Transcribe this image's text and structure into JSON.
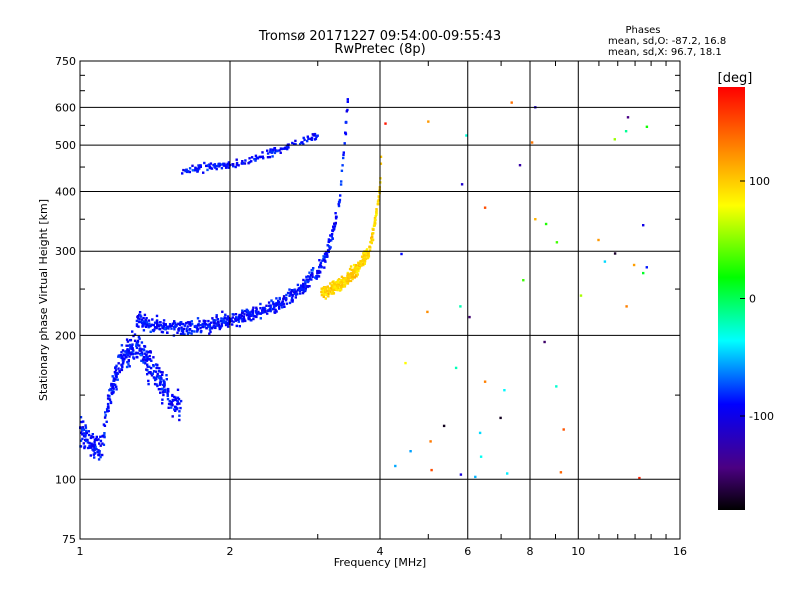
{
  "chart_data": {
    "type": "scatter",
    "title": "Tromsø 20171227 09:54:00-09:55:43",
    "subtitle": "RwPretec (8p)",
    "xlabel": "Frequency [MHz]",
    "ylabel": "Stationary phase Virtual Height [km]",
    "x_scale": "log",
    "y_scale": "log",
    "xlim": [
      1,
      16
    ],
    "ylim": [
      75,
      750
    ],
    "x_ticks": [
      1,
      2,
      4,
      6,
      8,
      10,
      16
    ],
    "x_tick_labels": [
      "1",
      "2",
      "4",
      "6",
      "8",
      "10",
      "16"
    ],
    "x_gridlines": [
      2,
      4,
      6,
      8,
      10
    ],
    "y_ticks": [
      75,
      100,
      200,
      300,
      400,
      500,
      600,
      750
    ],
    "y_tick_labels": [
      "75",
      "100",
      "200",
      "300",
      "400",
      "500",
      "600",
      "750"
    ],
    "y_gridlines": [
      100,
      200,
      300,
      400,
      500,
      600
    ],
    "grid": true,
    "legend_text": {
      "heading": "Phases",
      "line1": "mean, sd,O: -87.2, 16.8",
      "line2": "mean, sd,X:  96.7, 18.1"
    },
    "colorbar": {
      "label": "[deg]",
      "range": [
        -180,
        180
      ],
      "ticks": [
        100,
        0,
        -100
      ],
      "tick_labels": [
        "100",
        "0",
        "-100"
      ],
      "colormap": "rainbow (black-purple-blue-cyan-green-yellow-red)"
    },
    "o_trace": {
      "phase_mean": -87.2,
      "phase_sd": 16.8,
      "lower_layer_x": [
        1.0,
        1.05,
        1.1,
        1.15,
        1.2,
        1.3,
        1.4,
        1.5,
        1.6
      ],
      "lower_layer_y": [
        125,
        118,
        115,
        150,
        175,
        190,
        170,
        150,
        140
      ],
      "trace_x": [
        1.3,
        1.4,
        1.5,
        1.6,
        1.8,
        2.0,
        2.2,
        2.4,
        2.6,
        2.8,
        3.0,
        3.1,
        3.2,
        3.3,
        3.35,
        3.4,
        3.45
      ],
      "trace_y": [
        215,
        210,
        208,
        208,
        210,
        215,
        220,
        228,
        238,
        252,
        272,
        290,
        320,
        370,
        430,
        510,
        620
      ],
      "upper_layer_x": [
        1.6,
        1.8,
        2.0,
        2.2,
        2.4,
        2.6,
        2.8,
        3.0
      ],
      "upper_layer_y": [
        440,
        450,
        455,
        465,
        480,
        495,
        510,
        525
      ]
    },
    "x_trace": {
      "phase_mean": 96.7,
      "phase_sd": 18.1,
      "x": [
        3.05,
        3.2,
        3.4,
        3.6,
        3.8,
        3.9,
        4.0,
        4.02
      ],
      "y": [
        245,
        250,
        260,
        275,
        300,
        340,
        400,
        470
      ]
    },
    "scattered_points": [
      {
        "x": 5.0,
        "y": 560,
        "phase": 120
      },
      {
        "x": 6.5,
        "y": 370,
        "phase": 150
      },
      {
        "x": 8.2,
        "y": 350,
        "phase": 110
      },
      {
        "x": 12.5,
        "y": 230,
        "phase": 130
      },
      {
        "x": 13.5,
        "y": 340,
        "phase": -100
      },
      {
        "x": 13.5,
        "y": 270,
        "phase": 10
      },
      {
        "x": 5.8,
        "y": 230,
        "phase": -20
      },
      {
        "x": 6.5,
        "y": 160,
        "phase": 130
      },
      {
        "x": 8.2,
        "y": 600,
        "phase": -110
      },
      {
        "x": 4.5,
        "y": 175,
        "phase": 80
      }
    ]
  }
}
